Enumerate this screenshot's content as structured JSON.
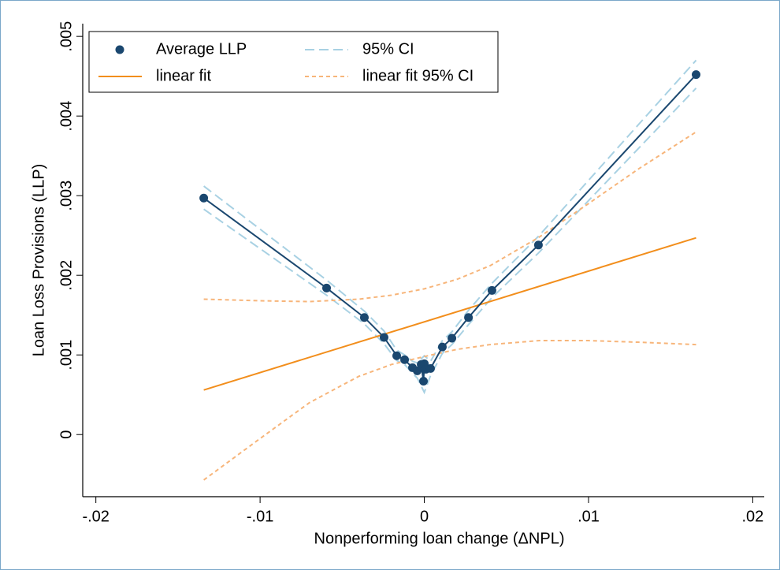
{
  "chart_data": {
    "type": "line",
    "x_label": "Nonperforming loan change (ΔNPL)",
    "y_label": "Loan Loss Provisions (LLP)",
    "xlim": [
      -0.0208,
      0.0207
    ],
    "ylim": [
      -0.00078,
      0.00516
    ],
    "xticks": [
      {
        "value": -0.02,
        "label": "-.02"
      },
      {
        "value": -0.01,
        "label": "-.01"
      },
      0,
      {
        "value": 0.01,
        "label": ".01"
      },
      {
        "value": 0.02,
        "label": ".02"
      }
    ],
    "yticks": [
      0,
      {
        "value": 0.001,
        "label": ".001"
      },
      {
        "value": 0.002,
        "label": ".002"
      },
      {
        "value": 0.003,
        "label": ".003"
      },
      {
        "value": 0.004,
        "label": ".004"
      },
      {
        "value": 0.005,
        "label": ".005"
      }
    ],
    "legend": "top-left",
    "series": [
      {
        "name": "Average LLP",
        "color": "#1a476f",
        "style": "line-markers",
        "x": [
          -0.01343,
          -0.00595,
          -0.00365,
          -0.00245,
          -0.00168,
          -0.0012,
          -0.00072,
          -0.00043,
          -0.00019,
          -5e-05,
          0,
          0.0001,
          0.00038,
          0.0011,
          0.00168,
          0.00269,
          0.00412,
          0.00695,
          0.01655
        ],
        "values": [
          0.00297,
          0.00184,
          0.00147,
          0.00122,
          0.00099,
          0.00094,
          0.00084,
          0.0008,
          0.00088,
          0.00067,
          0.00089,
          0.00082,
          0.00083,
          0.0011,
          0.00121,
          0.00147,
          0.00181,
          0.00238,
          0.00452
        ]
      },
      {
        "name": "95% CI",
        "color": "#a8d1e3",
        "style": "dashed-band",
        "x": [
          -0.01343,
          -0.00595,
          -0.00365,
          -0.00245,
          -0.00168,
          -0.0012,
          -0.00072,
          -0.00043,
          0,
          0.00038,
          0.0011,
          0.00168,
          0.00269,
          0.00412,
          0.00695,
          0.01655
        ],
        "upper": [
          0.00312,
          0.00194,
          0.00155,
          0.0013,
          0.00106,
          0.001,
          0.00092,
          0.0009,
          0.00099,
          0.00092,
          0.00118,
          0.00129,
          0.00156,
          0.0019,
          0.00249,
          0.0047
        ],
        "lower": [
          0.00283,
          0.00175,
          0.00139,
          0.00114,
          0.00093,
          0.00088,
          0.00077,
          0.00071,
          0.00053,
          0.00074,
          0.00102,
          0.00113,
          0.00138,
          0.00172,
          0.00228,
          0.00435
        ]
      },
      {
        "name": "linear fit",
        "color": "#f28e1c",
        "style": "line",
        "x": [
          -0.01343,
          0.01655
        ],
        "values": [
          0.00056,
          0.00247
        ]
      },
      {
        "name": "linear fit 95% CI",
        "color": "#f7b57a",
        "style": "dashed-band",
        "x": [
          -0.01343,
          -0.01,
          -0.007,
          -0.004,
          -0.002,
          0,
          0.002,
          0.004,
          0.007,
          0.01,
          0.013,
          0.01655
        ],
        "upper": [
          0.0017,
          0.00168,
          0.00167,
          0.0017,
          0.00175,
          0.00183,
          0.00195,
          0.00212,
          0.00248,
          0.0029,
          0.00333,
          0.0038
        ],
        "lower": [
          -0.00057,
          -5e-05,
          0.0004,
          0.00073,
          0.00088,
          0.00098,
          0.00107,
          0.00113,
          0.00118,
          0.00118,
          0.00116,
          0.00113
        ]
      }
    ]
  }
}
